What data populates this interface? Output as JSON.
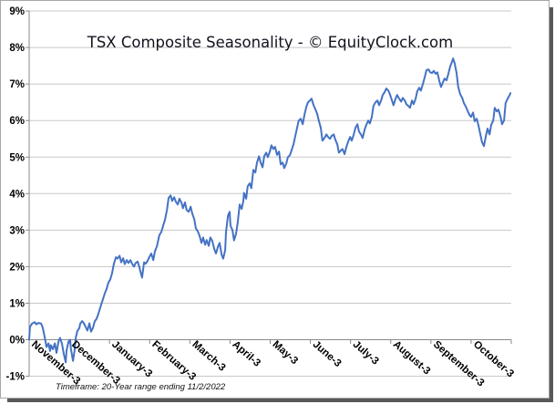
{
  "title": "TSX Composite Seasonality - © EquityClock.com",
  "footnote": "Timeframe: 20-Year range ending 11/2/2022",
  "colors": {
    "line": "#4472C4",
    "gridline": "#C8C8C8",
    "axis": "#8a8a8a",
    "title_text": "#12121e",
    "label_text": "#000000",
    "frame_border": "#a8a8a8",
    "frame_shadow": "#585858",
    "background": "#FFFFFF"
  },
  "chart_data": {
    "type": "line",
    "title": "TSX Composite Seasonality - © EquityClock.com",
    "subtitle": "Timeframe: 20-Year range ending 11/2/2022",
    "xlabel": "",
    "ylabel": "",
    "unit": "%",
    "grid": "horizontal",
    "legend": "none",
    "ylim": [
      -1,
      9
    ],
    "xlim_months": [
      0,
      12
    ],
    "y_ticks": [
      "9%",
      "8%",
      "7%",
      "6%",
      "5%",
      "4%",
      "3%",
      "2%",
      "1%",
      "0%",
      "-1%"
    ],
    "x_categories": [
      "November-3",
      "December-3",
      "January-3",
      "February-3",
      "March-3",
      "April-3",
      "May-3",
      "June-3",
      "July-3",
      "August-3",
      "September-3",
      "October-3"
    ],
    "series": [
      {
        "name": "TSX Composite Seasonality",
        "points": [
          [
            0,
            0
          ],
          [
            0.02,
            0.35
          ],
          [
            0.07,
            0.44
          ],
          [
            0.14,
            0.48
          ],
          [
            0.18,
            0.42
          ],
          [
            0.23,
            0.46
          ],
          [
            0.3,
            0.44
          ],
          [
            0.34,
            0.32
          ],
          [
            0.39,
            0.05
          ],
          [
            0.43,
            -0.2
          ],
          [
            0.48,
            -0.1
          ],
          [
            0.52,
            -0.31
          ],
          [
            0.54,
            -0.15
          ],
          [
            0.59,
            -0.26
          ],
          [
            0.64,
            -0.1
          ],
          [
            0.68,
            -0.36
          ],
          [
            0.73,
            -0.05
          ],
          [
            0.77,
            0.05
          ],
          [
            0.82,
            -0.12
          ],
          [
            0.86,
            -0.38
          ],
          [
            0.91,
            -0.62
          ],
          [
            0.93,
            -0.3
          ],
          [
            0.98,
            -0.05
          ],
          [
            1.02,
            0
          ],
          [
            1.04,
            -0.25
          ],
          [
            1.09,
            -0.58
          ],
          [
            1.13,
            -0.3
          ],
          [
            1.16,
            0.05
          ],
          [
            1.2,
            0.24
          ],
          [
            1.25,
            0.32
          ],
          [
            1.27,
            0.44
          ],
          [
            1.32,
            0.51
          ],
          [
            1.36,
            0.45
          ],
          [
            1.41,
            0.34
          ],
          [
            1.45,
            0.25
          ],
          [
            1.5,
            0.45
          ],
          [
            1.54,
            0.22
          ],
          [
            1.59,
            0.33
          ],
          [
            1.63,
            0.5
          ],
          [
            1.68,
            0.58
          ],
          [
            1.72,
            0.7
          ],
          [
            1.77,
            0.88
          ],
          [
            1.82,
            1.05
          ],
          [
            1.88,
            1.26
          ],
          [
            1.93,
            1.4
          ],
          [
            1.97,
            1.55
          ],
          [
            2.02,
            1.65
          ],
          [
            2.06,
            1.8
          ],
          [
            2.11,
            2.08
          ],
          [
            2.16,
            2.26
          ],
          [
            2.2,
            2.22
          ],
          [
            2.25,
            2.3
          ],
          [
            2.29,
            2.12
          ],
          [
            2.34,
            2.23
          ],
          [
            2.38,
            2.07
          ],
          [
            2.43,
            2.18
          ],
          [
            2.47,
            2.1
          ],
          [
            2.52,
            2.18
          ],
          [
            2.56,
            2.08
          ],
          [
            2.61,
            2
          ],
          [
            2.65,
            2.1
          ],
          [
            2.7,
            2.14
          ],
          [
            2.74,
            2
          ],
          [
            2.79,
            1.78
          ],
          [
            2.81,
            1.7
          ],
          [
            2.86,
            2.12
          ],
          [
            2.9,
            2.08
          ],
          [
            2.95,
            2.16
          ],
          [
            2.99,
            2.26
          ],
          [
            3.04,
            2.36
          ],
          [
            3.09,
            2.18
          ],
          [
            3.13,
            2.42
          ],
          [
            3.18,
            2.56
          ],
          [
            3.24,
            2.86
          ],
          [
            3.29,
            2.95
          ],
          [
            3.33,
            3.1
          ],
          [
            3.38,
            3.28
          ],
          [
            3.43,
            3.55
          ],
          [
            3.47,
            3.88
          ],
          [
            3.52,
            3.95
          ],
          [
            3.56,
            3.8
          ],
          [
            3.61,
            3.9
          ],
          [
            3.65,
            3.78
          ],
          [
            3.7,
            3.7
          ],
          [
            3.74,
            3.86
          ],
          [
            3.79,
            3.75
          ],
          [
            3.83,
            3.6
          ],
          [
            3.88,
            3.76
          ],
          [
            3.92,
            3.55
          ],
          [
            3.97,
            3.5
          ],
          [
            4.02,
            3.64
          ],
          [
            4.06,
            3.45
          ],
          [
            4.11,
            3.3
          ],
          [
            4.15,
            3.05
          ],
          [
            4.2,
            2.96
          ],
          [
            4.24,
            2.85
          ],
          [
            4.29,
            2.65
          ],
          [
            4.33,
            2.8
          ],
          [
            4.38,
            2.6
          ],
          [
            4.42,
            2.73
          ],
          [
            4.47,
            2.57
          ],
          [
            4.51,
            2.8
          ],
          [
            4.56,
            2.7
          ],
          [
            4.61,
            2.48
          ],
          [
            4.65,
            2.36
          ],
          [
            4.7,
            2.55
          ],
          [
            4.74,
            2.65
          ],
          [
            4.79,
            2.33
          ],
          [
            4.83,
            2.22
          ],
          [
            4.88,
            2.45
          ],
          [
            4.9,
            2.95
          ],
          [
            4.95,
            3.4
          ],
          [
            4.99,
            3.5
          ],
          [
            5.01,
            3.12
          ],
          [
            5.06,
            3
          ],
          [
            5.1,
            2.72
          ],
          [
            5.15,
            2.9
          ],
          [
            5.19,
            3.2
          ],
          [
            5.24,
            3.7
          ],
          [
            5.29,
            3.58
          ],
          [
            5.33,
            3.8
          ],
          [
            5.35,
            4.02
          ],
          [
            5.4,
            3.86
          ],
          [
            5.44,
            4.2
          ],
          [
            5.49,
            4.28
          ],
          [
            5.53,
            4.15
          ],
          [
            5.58,
            4.65
          ],
          [
            5.63,
            4.58
          ],
          [
            5.67,
            4.85
          ],
          [
            5.72,
            5.02
          ],
          [
            5.76,
            4.86
          ],
          [
            5.81,
            4.72
          ],
          [
            5.85,
            5.02
          ],
          [
            5.9,
            5.12
          ],
          [
            5.94,
            5
          ],
          [
            5.99,
            5.15
          ],
          [
            6.03,
            5.32
          ],
          [
            6.08,
            5.22
          ],
          [
            6.12,
            5.28
          ],
          [
            6.17,
            5.06
          ],
          [
            6.22,
            5.15
          ],
          [
            6.26,
            4.8
          ],
          [
            6.31,
            4.85
          ],
          [
            6.35,
            4.7
          ],
          [
            6.4,
            4.82
          ],
          [
            6.44,
            5
          ],
          [
            6.49,
            5.05
          ],
          [
            6.53,
            5.18
          ],
          [
            6.58,
            5.35
          ],
          [
            6.62,
            5.55
          ],
          [
            6.67,
            5.8
          ],
          [
            6.71,
            6
          ],
          [
            6.76,
            6.05
          ],
          [
            6.81,
            5.9
          ],
          [
            6.85,
            6.15
          ],
          [
            6.9,
            6.38
          ],
          [
            6.94,
            6.5
          ],
          [
            6.99,
            6.55
          ],
          [
            7.03,
            6.6
          ],
          [
            7.08,
            6.42
          ],
          [
            7.12,
            6.32
          ],
          [
            7.17,
            6.18
          ],
          [
            7.21,
            6
          ],
          [
            7.26,
            5.8
          ],
          [
            7.3,
            5.45
          ],
          [
            7.35,
            5.52
          ],
          [
            7.4,
            5.62
          ],
          [
            7.44,
            5.55
          ],
          [
            7.49,
            5.5
          ],
          [
            7.53,
            5.58
          ],
          [
            7.58,
            5.62
          ],
          [
            7.62,
            5.48
          ],
          [
            7.67,
            5.35
          ],
          [
            7.71,
            5.12
          ],
          [
            7.76,
            5.18
          ],
          [
            7.8,
            5.22
          ],
          [
            7.85,
            5.08
          ],
          [
            7.89,
            5.25
          ],
          [
            7.94,
            5.42
          ],
          [
            7.99,
            5.55
          ],
          [
            8.03,
            5.45
          ],
          [
            8.08,
            5.62
          ],
          [
            8.12,
            5.8
          ],
          [
            8.17,
            5.9
          ],
          [
            8.21,
            5.7
          ],
          [
            8.26,
            5.62
          ],
          [
            8.3,
            5.52
          ],
          [
            8.35,
            5.75
          ],
          [
            8.39,
            5.88
          ],
          [
            8.44,
            6
          ],
          [
            8.48,
            5.92
          ],
          [
            8.53,
            6.1
          ],
          [
            8.57,
            6.4
          ],
          [
            8.62,
            6.5
          ],
          [
            8.67,
            6.55
          ],
          [
            8.71,
            6.42
          ],
          [
            8.76,
            6.55
          ],
          [
            8.8,
            6.7
          ],
          [
            8.85,
            6.78
          ],
          [
            8.89,
            6.88
          ],
          [
            8.94,
            6.82
          ],
          [
            8.98,
            6.72
          ],
          [
            9.03,
            6.55
          ],
          [
            9.07,
            6.42
          ],
          [
            9.12,
            6.6
          ],
          [
            9.16,
            6.7
          ],
          [
            9.21,
            6.6
          ],
          [
            9.26,
            6.52
          ],
          [
            9.3,
            6.62
          ],
          [
            9.35,
            6.55
          ],
          [
            9.39,
            6.45
          ],
          [
            9.44,
            6.4
          ],
          [
            9.48,
            6.35
          ],
          [
            9.53,
            6.55
          ],
          [
            9.57,
            6.45
          ],
          [
            9.62,
            6.6
          ],
          [
            9.66,
            6.8
          ],
          [
            9.71,
            6.9
          ],
          [
            9.75,
            6.82
          ],
          [
            9.8,
            7
          ],
          [
            9.85,
            7.2
          ],
          [
            9.89,
            7.38
          ],
          [
            9.94,
            7.4
          ],
          [
            9.98,
            7.32
          ],
          [
            10.03,
            7.3
          ],
          [
            10.07,
            7.36
          ],
          [
            10.12,
            7.28
          ],
          [
            10.16,
            7.32
          ],
          [
            10.21,
            7.08
          ],
          [
            10.25,
            6.92
          ],
          [
            10.3,
            7.05
          ],
          [
            10.34,
            7.15
          ],
          [
            10.39,
            7.1
          ],
          [
            10.44,
            7.3
          ],
          [
            10.48,
            7.48
          ],
          [
            10.53,
            7.62
          ],
          [
            10.55,
            7.7
          ],
          [
            10.59,
            7.58
          ],
          [
            10.64,
            7.3
          ],
          [
            10.68,
            6.92
          ],
          [
            10.73,
            6.72
          ],
          [
            10.78,
            6.62
          ],
          [
            10.82,
            6.48
          ],
          [
            10.87,
            6.38
          ],
          [
            10.91,
            6.28
          ],
          [
            10.96,
            6.15
          ],
          [
            11,
            6.1
          ],
          [
            11.05,
            6.22
          ],
          [
            11.09,
            5.98
          ],
          [
            11.14,
            6.05
          ],
          [
            11.18,
            5.88
          ],
          [
            11.23,
            5.62
          ],
          [
            11.27,
            5.42
          ],
          [
            11.32,
            5.3
          ],
          [
            11.37,
            5.58
          ],
          [
            11.41,
            5.78
          ],
          [
            11.46,
            5.62
          ],
          [
            11.5,
            5.88
          ],
          [
            11.55,
            6
          ],
          [
            11.59,
            6.35
          ],
          [
            11.64,
            6.25
          ],
          [
            11.68,
            6.3
          ],
          [
            11.73,
            6.12
          ],
          [
            11.77,
            5.9
          ],
          [
            11.82,
            6
          ],
          [
            11.86,
            6.48
          ],
          [
            11.91,
            6.6
          ],
          [
            11.95,
            6.68
          ],
          [
            11.98,
            6.75
          ]
        ]
      }
    ]
  }
}
